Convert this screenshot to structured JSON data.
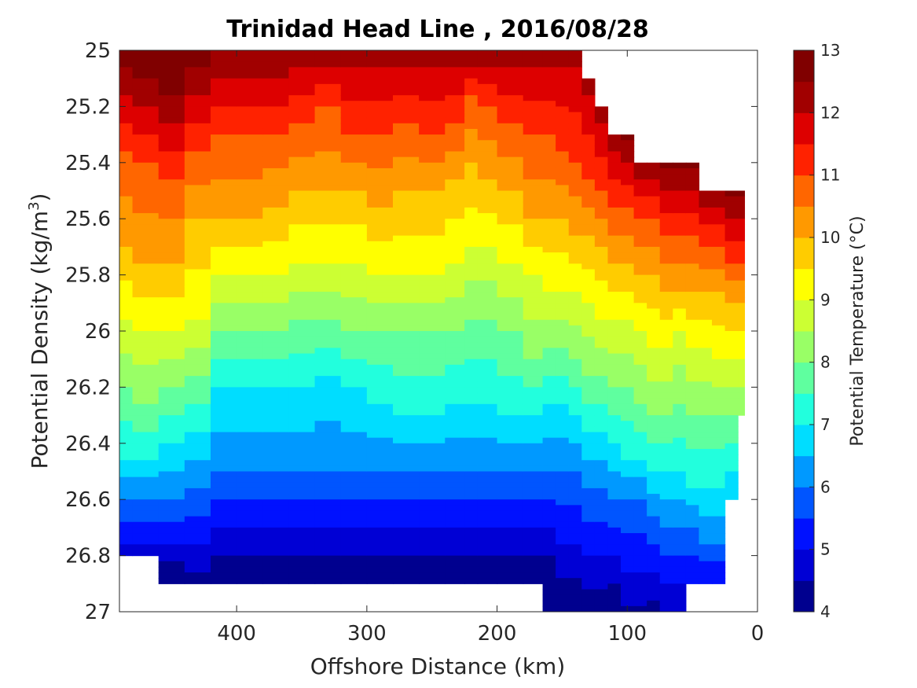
{
  "chart_data": {
    "type": "contour",
    "title": "Trinidad Head Line , 2016/08/28",
    "xlabel": "Offshore Distance (km)",
    "ylabel": "Potential Density (kg/m³)",
    "ylabel_main": "Potential Density (kg/m",
    "ylabel_sup": "3",
    "ylabel_end": ")",
    "colorbar_label": "Potential Temperature (°C)",
    "x_reversed": true,
    "y_reversed": true,
    "xlim": [
      0,
      490
    ],
    "ylim": [
      25,
      27
    ],
    "xticks": [
      400,
      300,
      200,
      100,
      0
    ],
    "xtick_labels": [
      "400",
      "300",
      "200",
      "100",
      "0"
    ],
    "yticks": [
      25,
      25.2,
      25.4,
      25.6,
      25.8,
      26,
      26.2,
      26.4,
      26.6,
      26.8,
      27
    ],
    "ytick_labels": [
      "25",
      "25.2",
      "25.4",
      "25.6",
      "25.8",
      "26",
      "26.2",
      "26.4",
      "26.6",
      "26.8",
      "27"
    ],
    "colorbar_ticks": [
      "13",
      "12",
      "11",
      "10",
      "9",
      "8",
      "7",
      "6",
      "5",
      "4"
    ],
    "colorbar_tick_values": [
      13,
      12,
      11,
      10,
      9,
      8,
      7,
      6,
      5,
      4
    ],
    "level_step": 0.5,
    "temp_range": [
      4,
      13
    ],
    "level_colors": [
      "#00008f",
      "#0000d5",
      "#0011ff",
      "#0055ff",
      "#0099ff",
      "#00ddff",
      "#22ffdd",
      "#5fff9f",
      "#99ff66",
      "#ccff33",
      "#ffff00",
      "#ffcc00",
      "#ff9900",
      "#ff6600",
      "#ff2200",
      "#dd0000",
      "#a10000",
      "#800000"
    ],
    "x_stations": [
      490,
      470,
      450,
      430,
      410,
      390,
      370,
      350,
      330,
      310,
      290,
      270,
      250,
      230,
      220,
      210,
      190,
      170,
      160,
      150,
      140,
      130,
      120,
      110,
      100,
      90,
      80,
      70,
      60,
      50,
      40,
      30,
      20,
      10
    ],
    "shallowest_density": [
      25,
      25,
      25,
      25,
      25,
      25,
      25,
      25,
      25,
      25,
      25,
      25,
      25,
      25,
      25,
      25,
      25,
      25,
      25,
      25,
      25.0,
      25.1,
      25.2,
      25.3,
      25.3,
      25.4,
      25.4,
      25.4,
      25.4,
      25.4,
      25.5,
      25.5,
      25.5,
      25.5
    ],
    "deepest_density": [
      26.8,
      26.8,
      26.9,
      26.9,
      26.9,
      26.9,
      26.9,
      26.9,
      26.9,
      26.9,
      26.9,
      26.9,
      26.9,
      26.9,
      26.9,
      26.9,
      26.9,
      26.9,
      27.0,
      27.0,
      27.0,
      27.0,
      27.0,
      27.0,
      27.0,
      27.0,
      27.0,
      27.0,
      27.0,
      26.9,
      26.9,
      26.9,
      26.6,
      26.3
    ],
    "isotherm_densities": [
      {
        "temp": 12,
        "values": [
          25.15,
          25.2,
          25.25,
          25.15,
          25.1,
          25.1,
          25.1,
          25.05,
          25.05,
          25.05,
          25.05,
          25.05,
          25.05,
          25.05,
          25.05,
          25.05,
          25.05,
          25.05,
          25.05,
          25.05,
          25.05,
          25.15,
          25.25,
          25.35,
          25.4,
          25.45,
          25.45,
          25.5,
          25.5,
          25.5,
          25.55,
          25.55,
          25.6,
          25.6
        ]
      },
      {
        "temp": 11,
        "values": [
          25.35,
          25.4,
          25.45,
          25.35,
          25.3,
          25.3,
          25.3,
          25.25,
          25.2,
          25.3,
          25.3,
          25.25,
          25.3,
          25.25,
          25.15,
          25.2,
          25.25,
          25.3,
          25.3,
          25.35,
          25.4,
          25.45,
          25.5,
          25.55,
          25.55,
          25.6,
          25.6,
          25.65,
          25.65,
          25.65,
          25.7,
          25.7,
          25.75,
          25.75
        ]
      },
      {
        "temp": 10,
        "values": [
          25.7,
          25.75,
          25.75,
          25.6,
          25.6,
          25.6,
          25.55,
          25.5,
          25.5,
          25.5,
          25.55,
          25.5,
          25.5,
          25.45,
          25.4,
          25.45,
          25.5,
          25.6,
          25.6,
          25.6,
          25.65,
          25.65,
          25.7,
          25.75,
          25.75,
          25.8,
          25.8,
          25.85,
          25.85,
          25.85,
          25.85,
          25.85,
          25.9,
          25.9
        ]
      },
      {
        "temp": 9,
        "values": [
          25.95,
          26.0,
          26.0,
          25.95,
          25.8,
          25.8,
          25.8,
          25.75,
          25.75,
          25.75,
          25.8,
          25.8,
          25.8,
          25.75,
          25.7,
          25.7,
          25.75,
          25.8,
          25.85,
          25.85,
          25.85,
          25.9,
          25.95,
          25.95,
          25.95,
          26.0,
          26.05,
          26.05,
          26.0,
          26.05,
          26.05,
          26.1,
          26.1,
          26.1
        ]
      },
      {
        "temp": 8,
        "values": [
          26.2,
          26.25,
          26.2,
          26.15,
          26.0,
          26.0,
          26.0,
          25.95,
          25.95,
          26.0,
          26.0,
          26.0,
          26.0,
          26.0,
          25.95,
          25.95,
          26.0,
          26.1,
          26.05,
          26.05,
          26.1,
          26.15,
          26.15,
          26.2,
          26.2,
          26.25,
          26.3,
          26.3,
          26.25,
          26.3,
          26.3,
          26.3,
          26.3,
          26.3
        ]
      },
      {
        "temp": 7,
        "values": [
          26.45,
          26.45,
          26.4,
          26.35,
          26.2,
          26.2,
          26.2,
          26.2,
          26.15,
          26.2,
          26.25,
          26.3,
          26.3,
          26.25,
          26.25,
          26.25,
          26.3,
          26.3,
          26.25,
          26.25,
          26.3,
          26.35,
          26.35,
          26.4,
          26.45,
          26.45,
          26.5,
          26.5,
          26.5,
          26.55,
          26.55,
          26.55,
          26.5,
          26.45
        ]
      },
      {
        "temp": 6,
        "values": [
          26.6,
          26.6,
          26.6,
          26.55,
          26.5,
          26.5,
          26.5,
          26.5,
          26.5,
          26.5,
          26.5,
          26.5,
          26.5,
          26.5,
          26.5,
          26.5,
          26.5,
          26.5,
          26.5,
          26.5,
          26.5,
          26.55,
          26.55,
          26.6,
          26.6,
          26.6,
          26.65,
          26.7,
          26.7,
          26.7,
          26.75,
          26.75,
          26.7,
          26.65
        ]
      },
      {
        "temp": 5,
        "values": [
          26.75,
          26.75,
          26.75,
          26.75,
          26.7,
          26.7,
          26.7,
          26.7,
          26.7,
          26.7,
          26.7,
          26.7,
          26.7,
          26.7,
          26.7,
          26.7,
          26.7,
          26.7,
          26.7,
          26.75,
          26.75,
          26.8,
          26.8,
          26.8,
          26.85,
          26.85,
          26.85,
          26.9,
          26.9,
          26.9,
          26.9,
          26.9,
          26.85,
          26.8
        ]
      }
    ]
  }
}
